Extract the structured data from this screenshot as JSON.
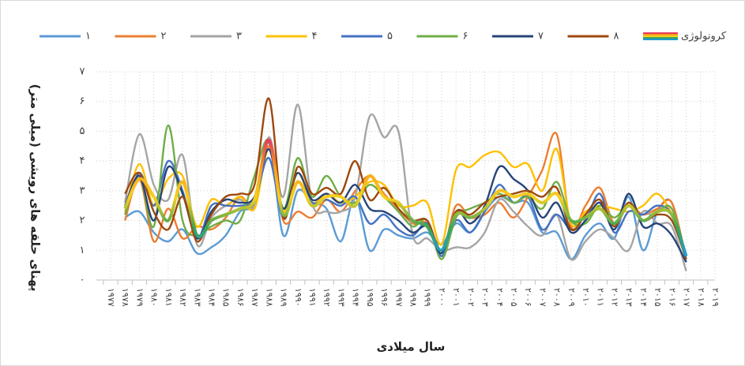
{
  "chart_data": {
    "type": "line",
    "xlabel": "سال میلادی",
    "ylabel": "پهنای حلقه های رویشی (میلی متر)",
    "categories": [
      "۱۹۷۷",
      "۱۹۷۸",
      "۱۹۷۹",
      "۱۹۸۰",
      "۱۹۸۱",
      "۱۹۸۲",
      "۱۹۸۳",
      "۱۹۸۴",
      "۱۹۸۵",
      "۱۹۸۶",
      "۱۹۸۷",
      "۱۹۸۸",
      "۱۹۸۹",
      "۱۹۹۰",
      "۱۹۹۱",
      "۱۹۹۲",
      "۱۹۹۳",
      "۱۹۹۴",
      "۱۹۹۵",
      "۱۹۹۶",
      "۱۹۹۷",
      "۱۹۹۸",
      "۱۹۹۹",
      "۲۰۰۰",
      "۲۰۰۱",
      "۲۰۰۲",
      "۲۰۰۳",
      "۲۰۰۴",
      "۲۰۰۵",
      "۲۰۰۶",
      "۲۰۰۷",
      "۲۰۰۸",
      "۲۰۰۹",
      "۲۰۱۰",
      "۲۰۱۱",
      "۲۰۱۲",
      "۲۰۱۳",
      "۲۰۱۴",
      "۲۰۱۵",
      "۲۰۱۶",
      "۲۰۱۷",
      "۲۰۱۸",
      "۲۰۱۹"
    ],
    "ylim": [
      0,
      7
    ],
    "yticks": [
      {
        "value": 0,
        "label": "۰"
      },
      {
        "value": 1,
        "label": "۱"
      },
      {
        "value": 2,
        "label": "۲"
      },
      {
        "value": 3,
        "label": "۳"
      },
      {
        "value": 4,
        "label": "۴"
      },
      {
        "value": 5,
        "label": "۵"
      },
      {
        "value": 6,
        "label": "۶"
      },
      {
        "value": 7,
        "label": "۷"
      }
    ],
    "grid": true,
    "legend": "top",
    "series": [
      {
        "name": "۱",
        "color": "#5b9bd5",
        "values": [
          null,
          2.1,
          2.3,
          1.6,
          1.3,
          1.7,
          0.9,
          1.1,
          1.5,
          2.3,
          2.6,
          4.6,
          1.5,
          3.0,
          2.6,
          2.4,
          1.3,
          2.8,
          1.0,
          1.7,
          1.5,
          1.4,
          1.6,
          1.2,
          1.9,
          1.6,
          2.3,
          2.8,
          2.6,
          2.6,
          1.6,
          1.6,
          0.7,
          1.5,
          1.9,
          1.4,
          2.8,
          1.0,
          2.3,
          2.6,
          0.6,
          null,
          null
        ]
      },
      {
        "name": "۲",
        "color": "#ed7d31",
        "values": [
          null,
          2.0,
          3.4,
          1.3,
          2.4,
          1.4,
          1.8,
          1.7,
          2.1,
          2.8,
          2.5,
          4.5,
          2.0,
          2.3,
          2.1,
          2.7,
          2.3,
          3.0,
          3.5,
          2.9,
          2.4,
          1.9,
          1.9,
          0.9,
          2.5,
          2.1,
          2.2,
          2.6,
          2.1,
          2.8,
          3.7,
          4.9,
          1.8,
          2.5,
          3.1,
          1.9,
          2.5,
          2.2,
          2.4,
          2.6,
          0.7,
          null,
          null
        ]
      },
      {
        "name": "۳",
        "color": "#a5a5a5",
        "values": [
          null,
          2.6,
          4.9,
          3.2,
          2.7,
          4.2,
          1.2,
          2.1,
          2.5,
          2.7,
          2.5,
          4.8,
          2.8,
          5.9,
          2.6,
          2.3,
          2.3,
          2.8,
          5.5,
          4.8,
          5.0,
          1.5,
          1.4,
          1.0,
          1.1,
          1.1,
          1.6,
          2.7,
          2.3,
          1.8,
          1.5,
          2.2,
          0.7,
          1.3,
          1.7,
          1.4,
          1.0,
          2.3,
          1.9,
          1.8,
          0.3,
          null,
          null
        ]
      },
      {
        "name": "۴",
        "color": "#ffc000",
        "values": [
          null,
          2.3,
          3.9,
          2.5,
          3.4,
          3.5,
          1.8,
          2.7,
          2.5,
          2.8,
          2.4,
          4.4,
          2.3,
          3.6,
          2.6,
          2.9,
          2.6,
          2.8,
          3.3,
          3.2,
          2.5,
          2.5,
          2.6,
          1.2,
          3.7,
          3.8,
          4.2,
          4.3,
          3.8,
          3.9,
          3.0,
          4.4,
          1.9,
          2.3,
          2.5,
          2.4,
          2.3,
          2.5,
          2.9,
          2.2,
          0.8,
          null,
          null
        ]
      },
      {
        "name": "۵",
        "color": "#4472c4",
        "values": [
          null,
          2.2,
          3.6,
          2.5,
          4.0,
          3.0,
          1.4,
          2.5,
          2.5,
          2.5,
          2.7,
          4.1,
          2.1,
          3.3,
          2.6,
          2.7,
          2.5,
          2.8,
          1.9,
          2.2,
          1.7,
          1.5,
          1.9,
          0.8,
          2.0,
          1.6,
          2.3,
          3.2,
          2.6,
          2.8,
          1.7,
          2.2,
          1.7,
          2.0,
          2.9,
          1.6,
          2.3,
          2.2,
          2.5,
          2.2,
          0.7,
          null,
          null
        ]
      },
      {
        "name": "۶",
        "color": "#70ad47",
        "values": [
          null,
          2.2,
          3.5,
          1.8,
          5.2,
          2.0,
          1.5,
          1.8,
          2.0,
          2.0,
          3.5,
          4.7,
          2.4,
          4.1,
          2.8,
          3.5,
          2.8,
          2.6,
          3.2,
          2.8,
          2.3,
          1.8,
          2.0,
          0.7,
          2.1,
          2.4,
          2.6,
          2.9,
          2.6,
          2.8,
          2.4,
          3.3,
          2.0,
          1.9,
          2.5,
          2.1,
          2.5,
          2.0,
          2.3,
          2.4,
          0.8,
          null,
          null
        ]
      },
      {
        "name": "۷",
        "color": "#264478",
        "values": [
          null,
          2.5,
          3.5,
          2.0,
          3.8,
          2.9,
          1.4,
          2.3,
          2.7,
          2.6,
          2.8,
          4.4,
          2.4,
          3.6,
          2.7,
          2.9,
          2.6,
          3.2,
          2.4,
          2.3,
          2.0,
          1.6,
          1.8,
          0.9,
          2.3,
          1.9,
          2.5,
          3.8,
          3.4,
          3.0,
          2.1,
          2.6,
          1.6,
          2.0,
          2.6,
          1.7,
          2.9,
          1.8,
          1.9,
          1.5,
          0.6,
          null,
          null
        ]
      },
      {
        "name": "۸",
        "color": "#9e480e",
        "values": [
          null,
          2.9,
          3.6,
          2.3,
          1.7,
          2.8,
          1.3,
          2.2,
          2.8,
          2.9,
          3.2,
          6.1,
          2.1,
          3.8,
          2.9,
          3.1,
          2.9,
          4.0,
          2.7,
          3.1,
          2.4,
          2.0,
          2.0,
          1.0,
          2.3,
          2.2,
          2.6,
          2.8,
          2.9,
          3.0,
          2.8,
          3.1,
          1.7,
          2.2,
          2.7,
          1.8,
          2.6,
          2.0,
          2.2,
          2.0,
          0.7,
          null,
          null
        ]
      },
      {
        "name": "کرونولوژی",
        "color": [
          "#e83a5b",
          "#f7a21e",
          "#f5d020",
          "#3aa657",
          "#1f9bd6"
        ],
        "values": [
          null,
          2.4,
          3.4,
          2.8,
          2.0,
          3.3,
          1.5,
          2.0,
          2.2,
          2.4,
          2.7,
          4.7,
          2.2,
          3.3,
          2.5,
          2.8,
          2.8,
          2.5,
          3.5,
          2.8,
          2.6,
          2.0,
          1.8,
          1.0,
          2.2,
          2.1,
          2.4,
          3.0,
          2.8,
          2.9,
          2.6,
          2.9,
          2.0,
          2.1,
          2.4,
          1.9,
          2.5,
          2.0,
          2.3,
          2.2,
          0.8,
          null,
          null
        ]
      }
    ]
  }
}
